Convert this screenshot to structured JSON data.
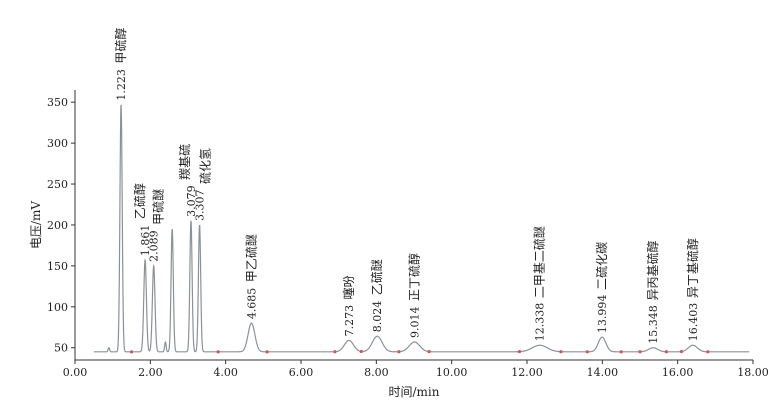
{
  "chart_data": {
    "type": "line",
    "xlabel": "时间/min",
    "ylabel": "电压/mV",
    "xlim": [
      0,
      18
    ],
    "ylim": [
      35,
      360
    ],
    "xticks": [
      0,
      2,
      4,
      6,
      8,
      10,
      12,
      14,
      16,
      18
    ],
    "xtick_labels": [
      "0.00",
      "2.00",
      "4.00",
      "6.00",
      "8.00",
      "10.00",
      "12.00",
      "14.00",
      "16.00",
      "18.00"
    ],
    "yticks": [
      50,
      100,
      150,
      200,
      250,
      300,
      350
    ],
    "ytick_labels": [
      "50",
      "100",
      "150",
      "200",
      "250",
      "300",
      "350"
    ],
    "baseline": 45,
    "colors": {
      "trace": "#8a9299",
      "marker": "#d9534f",
      "axis": "#333333"
    },
    "peaks": [
      {
        "rt": 0.9,
        "height": 50,
        "width": 0.02
      },
      {
        "rt": 1.223,
        "height": 347,
        "width": 0.03,
        "rt_label": "1.223",
        "name": "甲硫醇"
      },
      {
        "rt": 1.861,
        "height": 157,
        "width": 0.035,
        "rt_label": "1.861",
        "name": "乙硫醇"
      },
      {
        "rt": 2.089,
        "height": 150,
        "width": 0.035,
        "rt_label": "2.089",
        "name": "甲硫醚"
      },
      {
        "rt": 2.4,
        "height": 57,
        "width": 0.02
      },
      {
        "rt": 2.58,
        "height": 195,
        "width": 0.03
      },
      {
        "rt": 3.079,
        "height": 205,
        "width": 0.03,
        "rt_label": "3.079",
        "name": "羰基硫"
      },
      {
        "rt": 3.307,
        "height": 200,
        "width": 0.03,
        "rt_label": "3.307",
        "name": "硫化氢"
      },
      {
        "rt": 4.685,
        "height": 80,
        "width": 0.09,
        "rt_label": "4.685",
        "name": "甲乙硫醚"
      },
      {
        "rt": 7.273,
        "height": 59,
        "width": 0.12,
        "rt_label": "7.273",
        "name": "噻吩"
      },
      {
        "rt": 8.024,
        "height": 64,
        "width": 0.13,
        "rt_label": "8.024",
        "name": "乙硫醚"
      },
      {
        "rt": 9.014,
        "height": 57,
        "width": 0.14,
        "rt_label": "9.014",
        "name": "正丁硫醇"
      },
      {
        "rt": 12.338,
        "height": 53,
        "width": 0.2,
        "rt_label": "12.338",
        "name": "二甲基二硫醚"
      },
      {
        "rt": 13.994,
        "height": 63,
        "width": 0.1,
        "rt_label": "13.994",
        "name": "二硫化碳"
      },
      {
        "rt": 15.348,
        "height": 50,
        "width": 0.12,
        "rt_label": "15.348",
        "name": "异丙基硫醇"
      },
      {
        "rt": 16.403,
        "height": 53,
        "width": 0.12,
        "rt_label": "16.403",
        "name": "异丁基硫醇"
      }
    ],
    "integration_markers": [
      1.5,
      3.8,
      5.1,
      6.9,
      7.6,
      8.6,
      9.4,
      11.8,
      12.9,
      13.6,
      14.5,
      15.0,
      15.7,
      16.1,
      16.8
    ]
  }
}
